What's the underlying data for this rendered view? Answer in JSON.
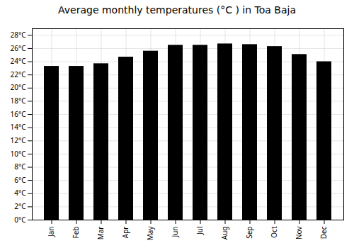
{
  "chart_data": {
    "type": "bar",
    "title": "Average monthly temperatures (°C ) in Toa Baja",
    "categories": [
      "Jan",
      "Feb",
      "Mar",
      "Apr",
      "May",
      "Jun",
      "Jul",
      "Aug",
      "Sep",
      "Oct",
      "Nov",
      "Dec"
    ],
    "values": [
      23.3,
      23.3,
      23.7,
      24.7,
      25.6,
      26.5,
      26.5,
      26.7,
      26.6,
      26.3,
      25.1,
      24.0
    ],
    "ylim": [
      0,
      29
    ],
    "yticks": [
      {
        "value": 0,
        "label": "0°C"
      },
      {
        "value": 2,
        "label": "2°C"
      },
      {
        "value": 4,
        "label": "4°C"
      },
      {
        "value": 6,
        "label": "6°C"
      },
      {
        "value": 8,
        "label": "8°C"
      },
      {
        "value": 10,
        "label": "10°C"
      },
      {
        "value": 12,
        "label": "12°C"
      },
      {
        "value": 14,
        "label": "14°C"
      },
      {
        "value": 16,
        "label": "16°C"
      },
      {
        "value": 18,
        "label": "18°C"
      },
      {
        "value": 20,
        "label": "20°C"
      },
      {
        "value": 22,
        "label": "22°C"
      },
      {
        "value": 24,
        "label": "24°C"
      },
      {
        "value": 26,
        "label": "26°C"
      },
      {
        "value": 28,
        "label": "28°C"
      }
    ],
    "grid": true
  }
}
